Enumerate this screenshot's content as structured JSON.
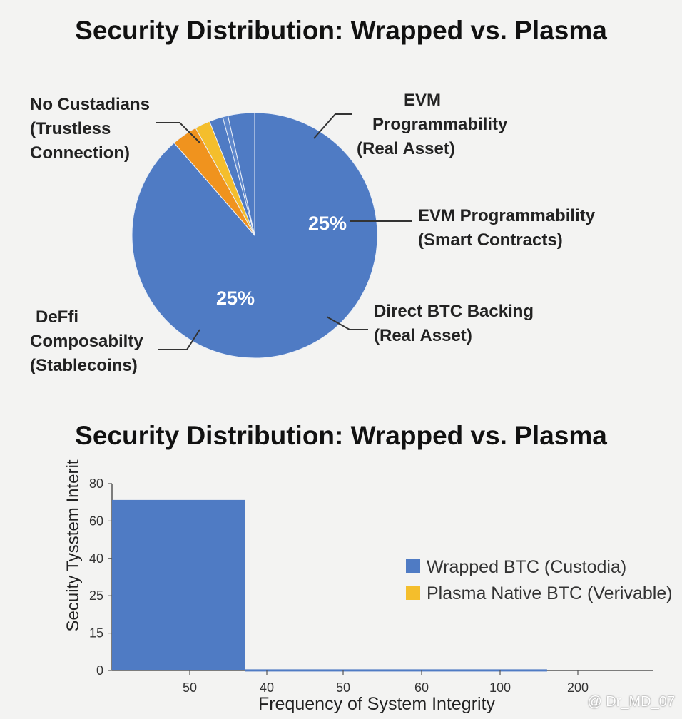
{
  "chart_data": [
    {
      "type": "pie",
      "title": "Security Distribution: Wrapped vs. Plasma",
      "slices": [
        {
          "label": "Main (blue)",
          "value": 88.6,
          "color": "#4f7bc4"
        },
        {
          "label": "Orange",
          "value": 3.4,
          "color": "#f0931e"
        },
        {
          "label": "Gold",
          "value": 2.0,
          "color": "#f4be2c"
        },
        {
          "label": "Blue sliver 1",
          "value": 1.8,
          "color": "#4f7bc4"
        },
        {
          "label": "Blue sliver 2",
          "value": 0.7,
          "color": "#5f88cc"
        },
        {
          "label": "Blue sliver 3",
          "value": 3.5,
          "color": "#4f7bc4"
        }
      ],
      "annotations": [
        {
          "id": "no-custodians",
          "lines": [
            "No Custadians",
            "(Trustless",
            "Connection)"
          ]
        },
        {
          "id": "evm-real",
          "lines": [
            "EVM",
            "Programmability",
            "(Real Asset)"
          ]
        },
        {
          "id": "evm-smart",
          "lines": [
            "EVM Programmability",
            "(Smart Contracts)"
          ]
        },
        {
          "id": "direct-btc",
          "lines": [
            "Direct BTC Backing",
            "(Real Asset)"
          ]
        },
        {
          "id": "defi",
          "lines": [
            "DeFfi",
            "Composabilty",
            "(Stablecoins)"
          ]
        }
      ],
      "data_labels": [
        "25%",
        "25%"
      ]
    },
    {
      "type": "bar",
      "title": "Security Distribution: Wrapped vs. Plasma",
      "xlabel": "Frequency of System Integrity",
      "ylabel": "Secuity Tysstem Interit",
      "x_ticks": [
        "50",
        "40",
        "50",
        "60",
        "100",
        "200"
      ],
      "y_ticks": [
        "0",
        "15",
        "25",
        "40",
        "60",
        "80"
      ],
      "ylim": [
        0,
        80
      ],
      "series": [
        {
          "name": "Wrapped BTC (Custodia)",
          "color": "#4f7bc4",
          "bars": [
            {
              "x_from": 0,
              "x_to": 1.74,
              "value": 73
            },
            {
              "x_from": 1.74,
              "x_to": 5.7,
              "value": 0.5
            }
          ]
        },
        {
          "name": "Plasma Native BTC (Verivable)",
          "color": "#f4be2c",
          "bars": []
        }
      ]
    }
  ],
  "watermark": "@ Dr_MD_07"
}
